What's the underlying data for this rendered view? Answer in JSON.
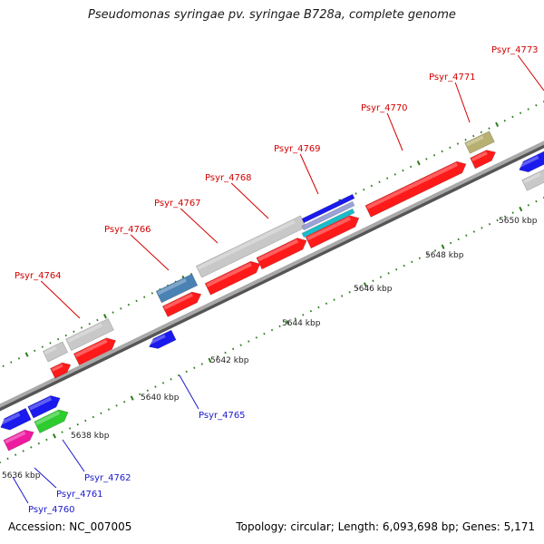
{
  "title": "Pseudomonas syringae pv. syringae B728a, complete genome",
  "footer": {
    "accession": "Accession: NC_007005",
    "topology": "Topology: circular; Length: 6,093,698 bp; Genes: 5,171"
  },
  "colors": {
    "backbone": "#8f8f8f",
    "tick": "#2e7d1e",
    "label_red": "#d40000",
    "label_blue": "#1a1acc",
    "gene_red": "#ff1a1a",
    "gene_grey": "#c8c8c8",
    "gene_blue": "#1a1aee",
    "gene_steel": "#4a82b4",
    "gene_green": "#2ecc2e",
    "gene_magenta": "#ee1aa0",
    "gene_khaki": "#b8b070"
  },
  "ticks": [
    "5636 kbp",
    "5638 kbp",
    "5640 kbp",
    "5642 kbp",
    "5644 kbp",
    "5646 kbp",
    "5648 kbp",
    "5650 kbp"
  ],
  "gene_labels": [
    {
      "name": "Psyr_4760",
      "color": "blue"
    },
    {
      "name": "Psyr_4761",
      "color": "blue"
    },
    {
      "name": "Psyr_4762",
      "color": "blue"
    },
    {
      "name": "Psyr_4764",
      "color": "red"
    },
    {
      "name": "Psyr_4765",
      "color": "blue"
    },
    {
      "name": "Psyr_4766",
      "color": "red"
    },
    {
      "name": "Psyr_4767",
      "color": "red"
    },
    {
      "name": "Psyr_4768",
      "color": "red"
    },
    {
      "name": "Psyr_4769",
      "color": "red"
    },
    {
      "name": "Psyr_4770",
      "color": "red"
    },
    {
      "name": "Psyr_4771",
      "color": "red"
    },
    {
      "name": "Psyr_4773",
      "color": "red"
    }
  ]
}
